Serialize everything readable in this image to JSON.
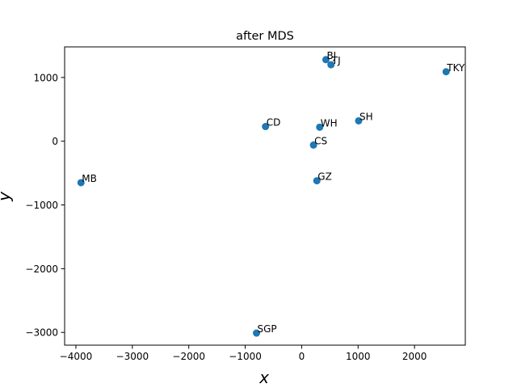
{
  "chart_data": {
    "type": "scatter",
    "title": "after MDS",
    "xlabel": "x",
    "ylabel": "y",
    "xlim": [
      -4200,
      2900
    ],
    "ylim": [
      -3200,
      1480
    ],
    "xticks": [
      -4000,
      -3000,
      -2000,
      -1000,
      0,
      1000,
      2000
    ],
    "yticks": [
      -3000,
      -2000,
      -1000,
      0,
      1000
    ],
    "xtick_labels": [
      "−4000",
      "−3000",
      "−2000",
      "−1000",
      "0",
      "1000",
      "2000"
    ],
    "ytick_labels": [
      "−3000",
      "−2000",
      "−1000",
      "0",
      "1000"
    ],
    "grid": false,
    "marker_color": "#1f77b4",
    "points": [
      {
        "label": "BJ",
        "x": 430,
        "y": 1280
      },
      {
        "label": "TJ",
        "x": 520,
        "y": 1200
      },
      {
        "label": "TKY",
        "x": 2560,
        "y": 1090
      },
      {
        "label": "SH",
        "x": 1010,
        "y": 320
      },
      {
        "label": "CD",
        "x": -640,
        "y": 230
      },
      {
        "label": "WH",
        "x": 320,
        "y": 220
      },
      {
        "label": "CS",
        "x": 210,
        "y": -60
      },
      {
        "label": "GZ",
        "x": 270,
        "y": -620
      },
      {
        "label": "MB",
        "x": -3910,
        "y": -650
      },
      {
        "label": "SGP",
        "x": -800,
        "y": -3010
      }
    ]
  }
}
